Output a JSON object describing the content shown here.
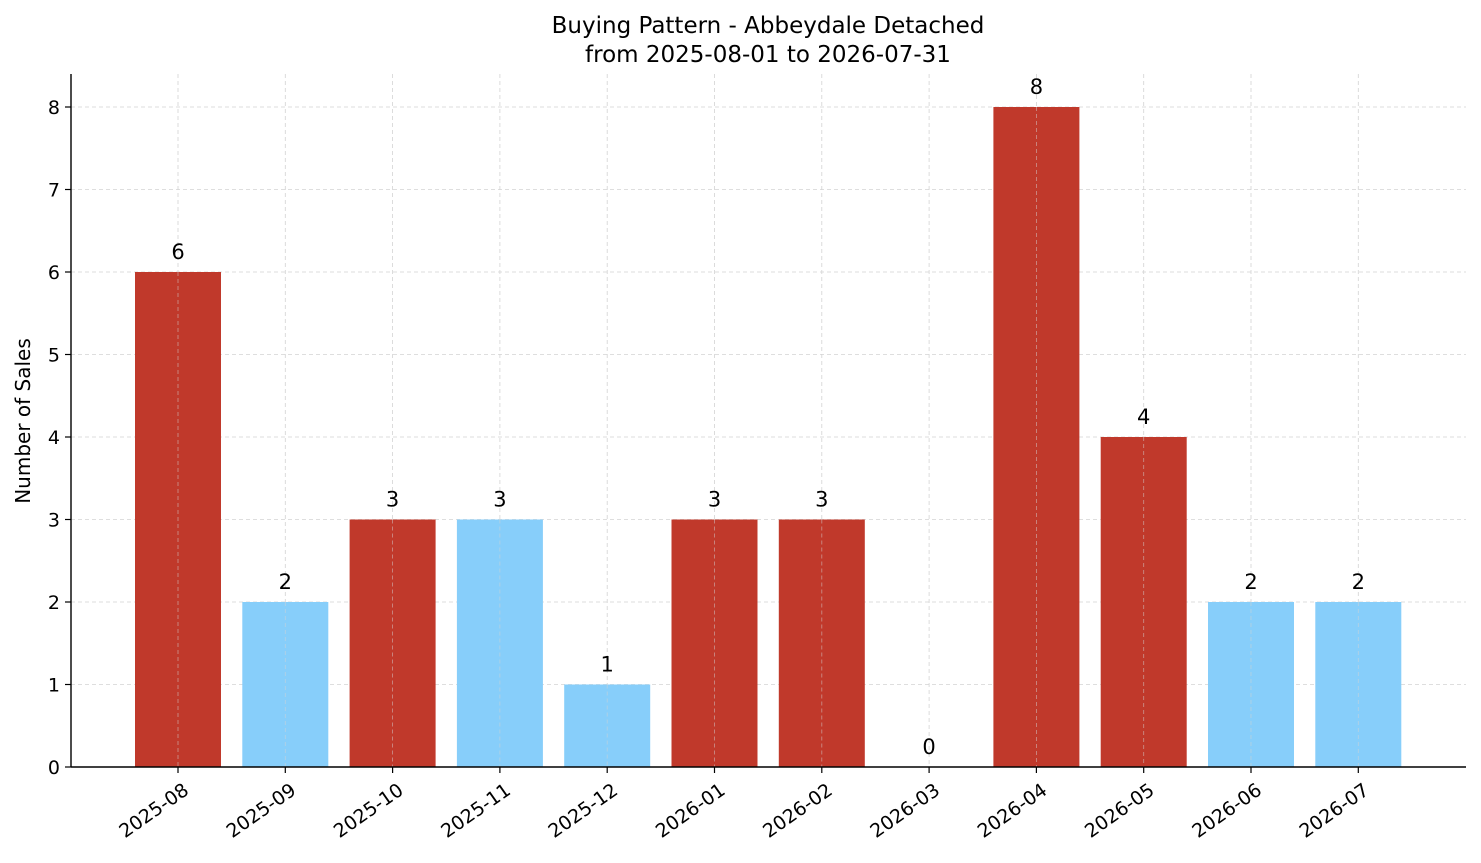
{
  "chart_data": {
    "type": "bar",
    "title": "Buying Pattern - Abbeydale Detached",
    "subtitle": "from 2025-08-01 to 2026-07-31",
    "xlabel": "",
    "ylabel": "Number of Sales",
    "categories": [
      "2025-08",
      "2025-09",
      "2025-10",
      "2025-11",
      "2025-12",
      "2026-01",
      "2026-02",
      "2026-03",
      "2026-04",
      "2026-05",
      "2026-06",
      "2026-07"
    ],
    "values": [
      6,
      2,
      3,
      3,
      1,
      3,
      3,
      0,
      8,
      4,
      2,
      2
    ],
    "bar_colors": [
      "#c0392b",
      "#87cefa",
      "#c0392b",
      "#87cefa",
      "#87cefa",
      "#c0392b",
      "#c0392b",
      "#87cefa",
      "#c0392b",
      "#c0392b",
      "#87cefa",
      "#87cefa"
    ],
    "ylim": [
      0,
      8.4
    ],
    "yticks": [
      0,
      1,
      2,
      3,
      4,
      5,
      6,
      7,
      8
    ],
    "grid": true,
    "legend": false
  }
}
